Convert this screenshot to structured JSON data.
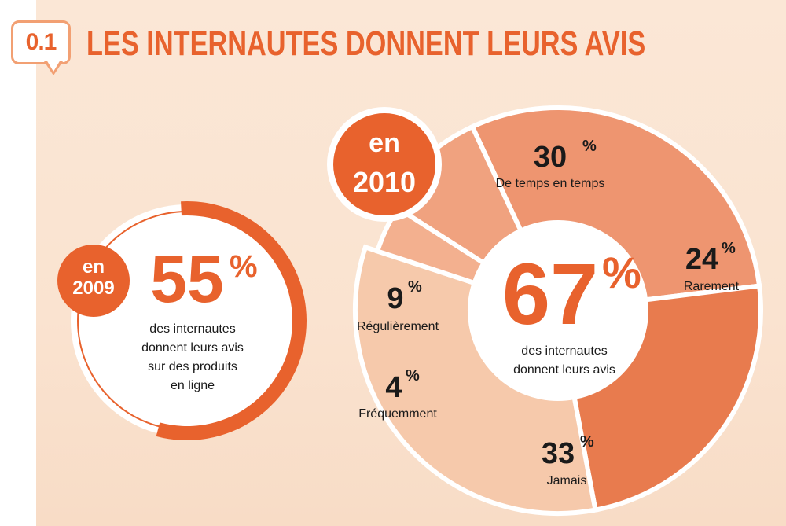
{
  "header": {
    "section_number": "0.1",
    "title": "LES INTERNAUTES DONNENT LEURS AVIS"
  },
  "colors": {
    "accent": "#e8622d",
    "slice_jamais": "#f6c9ab",
    "slice_temps": "#ee9570",
    "slice_rarement": "#e87b4e",
    "slice_regulierement": "#f0a27f",
    "slice_frequemment": "#f3b08f",
    "text_dark": "#1a1a1a"
  },
  "chart_data": [
    {
      "type": "gauge",
      "year_line1": "en",
      "year_line2": "2009",
      "value": 55,
      "value_label": "55",
      "unit": "%",
      "caption": [
        "des internautes",
        "donnent leurs avis",
        "sur des produits",
        "en ligne"
      ]
    },
    {
      "type": "pie",
      "year_line1": "en",
      "year_line2": "2010",
      "center_value_label": "67",
      "center_unit": "%",
      "center_caption": [
        "des internautes",
        "donnent leurs avis"
      ],
      "slices": [
        {
          "label": "De temps en temps",
          "value": 30,
          "value_label": "30",
          "unit": "%"
        },
        {
          "label": "Rarement",
          "value": 24,
          "value_label": "24",
          "unit": "%"
        },
        {
          "label": "Jamais",
          "value": 33,
          "value_label": "33",
          "unit": "%"
        },
        {
          "label": "Fréquemment",
          "value": 4,
          "value_label": "4",
          "unit": "%"
        },
        {
          "label": "Régulièrement",
          "value": 9,
          "value_label": "9",
          "unit": "%"
        }
      ]
    }
  ]
}
